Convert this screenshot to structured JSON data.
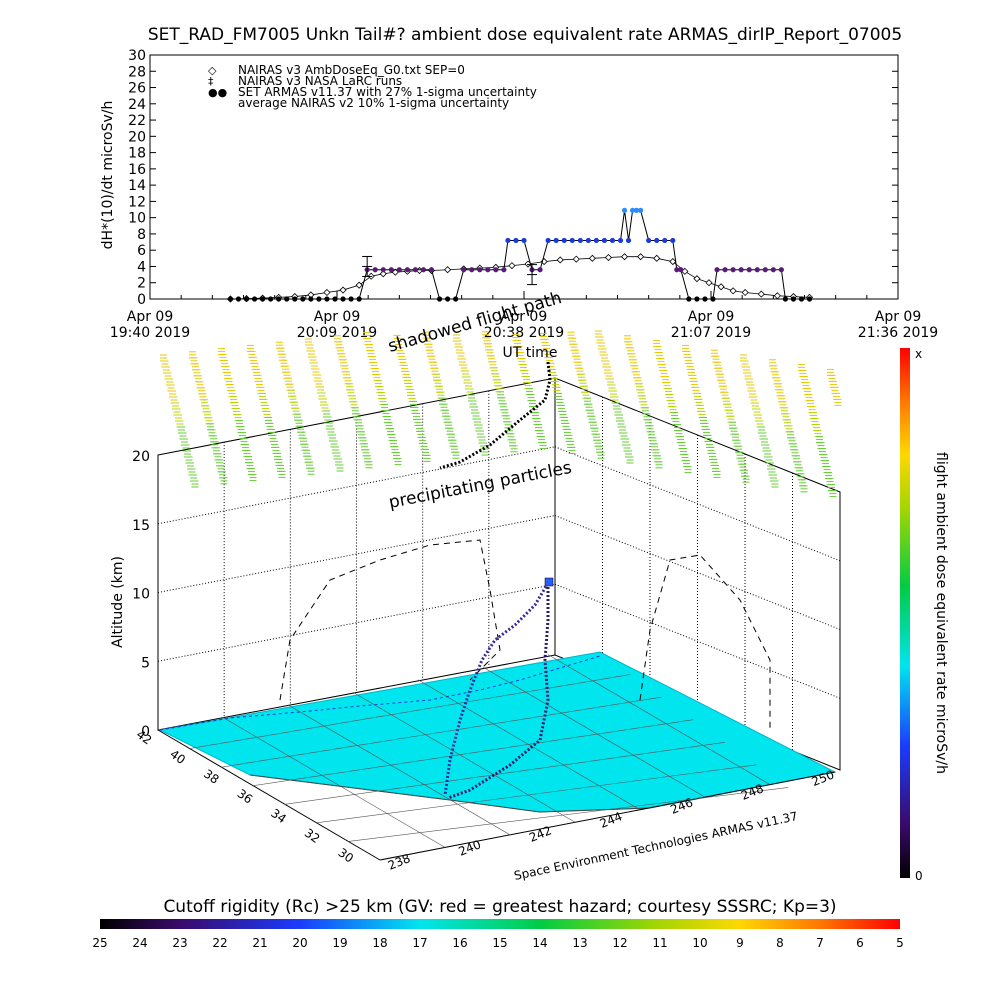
{
  "chart_data": [
    {
      "type": "scatter",
      "title": "SET_RAD_FM7005  Unkn Tail#? ambient dose equivalent rate ARMAS_dirIP_Report_07005",
      "ylabel": "dH*(10)/dt microSv/h",
      "xlabel": "UT time",
      "ylim": [
        0,
        30
      ],
      "yticks": [
        0,
        2,
        4,
        6,
        8,
        10,
        12,
        14,
        16,
        18,
        20,
        22,
        24,
        26,
        28,
        30
      ],
      "xlim_minutes_label": "19:40 to 21:36",
      "xticks": [
        {
          "date": "Apr 09",
          "time": "19:40 2019"
        },
        {
          "date": "Apr 09",
          "time": "20:09 2019"
        },
        {
          "date": "Apr 09",
          "time": "20:38 2019"
        },
        {
          "date": "Apr 09",
          "time": "21:07 2019"
        },
        {
          "date": "Apr 09",
          "time": "21:36 2019"
        }
      ],
      "legend": [
        {
          "symbol": "◇",
          "label": "NAIRAS v3 AmbDoseEq_G0.txt SEP=0"
        },
        {
          "symbol": "‡",
          "label": "NAIRAS v3 NASA LaRC runs"
        },
        {
          "symbol": "●●",
          "label": "SET ARMAS v11.37 with 27% 1-sigma uncertainty"
        },
        {
          "symbol": "",
          "label": "average NAIRAS v2 10% 1-sigma uncertainty"
        }
      ],
      "legend_position": "top-left",
      "series": [
        {
          "name": "SET ARMAS v11.37 with 27% 1-sigma uncertainty",
          "points": [
            [
              20,
              0
            ],
            [
              22,
              0
            ],
            [
              24,
              0
            ],
            [
              26,
              0
            ],
            [
              28,
              0
            ],
            [
              30,
              0
            ],
            [
              32,
              0
            ],
            [
              34,
              0
            ],
            [
              36,
              0
            ],
            [
              38,
              0
            ],
            [
              40,
              0
            ],
            [
              42,
              0
            ],
            [
              44,
              0
            ],
            [
              46,
              0
            ],
            [
              48,
              0
            ],
            [
              50,
              0
            ],
            [
              52,
              0
            ],
            [
              54,
              3.6
            ],
            [
              56,
              3.6
            ],
            [
              58,
              3.6
            ],
            [
              60,
              3.6
            ],
            [
              62,
              3.6
            ],
            [
              64,
              3.6
            ],
            [
              66,
              3.6
            ],
            [
              68,
              3.6
            ],
            [
              70,
              3.6
            ],
            [
              72,
              0
            ],
            [
              74,
              0
            ],
            [
              76,
              0
            ],
            [
              78,
              3.6
            ],
            [
              80,
              3.6
            ],
            [
              82,
              3.6
            ],
            [
              84,
              3.6
            ],
            [
              86,
              3.6
            ],
            [
              88,
              3.6
            ],
            [
              89,
              7.2
            ],
            [
              91,
              7.2
            ],
            [
              93,
              7.2
            ],
            [
              95,
              3.6
            ],
            [
              97,
              3.6
            ],
            [
              99,
              7.2
            ],
            [
              101,
              7.2
            ],
            [
              103,
              7.2
            ],
            [
              105,
              7.2
            ],
            [
              107,
              7.2
            ],
            [
              109,
              7.2
            ],
            [
              111,
              7.2
            ],
            [
              113,
              7.2
            ],
            [
              115,
              7.2
            ],
            [
              117,
              7.2
            ],
            [
              118,
              10.9
            ],
            [
              119,
              7.2
            ],
            [
              120,
              10.9
            ],
            [
              121,
              10.9
            ],
            [
              122,
              10.9
            ],
            [
              124,
              7.2
            ],
            [
              126,
              7.2
            ],
            [
              128,
              7.2
            ],
            [
              130,
              7.2
            ],
            [
              131,
              3.6
            ],
            [
              132,
              3.6
            ],
            [
              134,
              0
            ],
            [
              136,
              0
            ],
            [
              138,
              0
            ],
            [
              140,
              0
            ],
            [
              141,
              3.6
            ],
            [
              143,
              3.6
            ],
            [
              145,
              3.6
            ],
            [
              147,
              3.6
            ],
            [
              149,
              3.6
            ],
            [
              151,
              3.6
            ],
            [
              153,
              3.6
            ],
            [
              155,
              3.6
            ],
            [
              157,
              3.6
            ],
            [
              158,
              0
            ],
            [
              160,
              0
            ],
            [
              162,
              0
            ],
            [
              164,
              0
            ]
          ]
        },
        {
          "name": "NAIRAS v3 AmbDoseEq_G0.txt SEP=0",
          "points": [
            [
              20,
              0
            ],
            [
              24,
              0.05
            ],
            [
              28,
              0.1
            ],
            [
              32,
              0.2
            ],
            [
              36,
              0.3
            ],
            [
              40,
              0.5
            ],
            [
              44,
              0.8
            ],
            [
              48,
              1.1
            ],
            [
              52,
              1.7
            ],
            [
              55,
              2.8
            ],
            [
              58,
              3.1
            ],
            [
              61,
              3.3
            ],
            [
              64,
              3.4
            ],
            [
              67,
              3.5
            ],
            [
              70,
              3.5
            ],
            [
              74,
              3.6
            ],
            [
              78,
              3.7
            ],
            [
              82,
              3.8
            ],
            [
              86,
              3.9
            ],
            [
              90,
              4.1
            ],
            [
              94,
              4.3
            ],
            [
              98,
              4.6
            ],
            [
              102,
              4.8
            ],
            [
              106,
              4.9
            ],
            [
              110,
              5.0
            ],
            [
              114,
              5.1
            ],
            [
              118,
              5.2
            ],
            [
              122,
              5.2
            ],
            [
              126,
              5.0
            ],
            [
              130,
              4.6
            ],
            [
              133,
              3.4
            ],
            [
              136,
              2.5
            ],
            [
              139,
              2.0
            ],
            [
              142,
              1.5
            ],
            [
              145,
              1.0
            ],
            [
              148,
              0.8
            ],
            [
              152,
              0.6
            ],
            [
              156,
              0.4
            ],
            [
              160,
              0.3
            ],
            [
              164,
              0.2
            ]
          ]
        },
        {
          "name": "NAIRAS v3 NASA LaRC runs",
          "points": [
            [
              54,
              4
            ],
            [
              95,
              3
            ]
          ]
        }
      ]
    },
    {
      "type": "scatter",
      "title": "",
      "zlabel": "Altitude (km)",
      "zticks": [
        0,
        5,
        10,
        15,
        20
      ],
      "lat_ticks": [
        "42",
        "40",
        "38",
        "36",
        "34",
        "32",
        "30"
      ],
      "lon_ticks": [
        "238",
        "240",
        "242",
        "244",
        "246",
        "248",
        "250"
      ],
      "annotations": [
        "shadowed flight path",
        "precipitating particles"
      ],
      "credit": "Space Environment Technologies ARMAS v11.37",
      "colorbar_right": {
        "label": "flight ambient dose equivalent rate microSv/h",
        "top": "x",
        "bottom": "0"
      },
      "colorbar_bottom": {
        "label": "Cutoff rigidity (Rc) >25 km (GV: red = greatest hazard; courtesy SSSRC; Kp=3)",
        "ticks": [
          "25",
          "24",
          "23",
          "22",
          "21",
          "20",
          "19",
          "18",
          "17",
          "16",
          "15",
          "14",
          "13",
          "12",
          "11",
          "10",
          "9",
          "8",
          "7",
          "6",
          "5"
        ]
      }
    }
  ],
  "colors": {
    "armas": "#1a3cd6",
    "armas_low": "#5a1a7a",
    "nairas": "#000000",
    "map": "#00e5ee"
  }
}
